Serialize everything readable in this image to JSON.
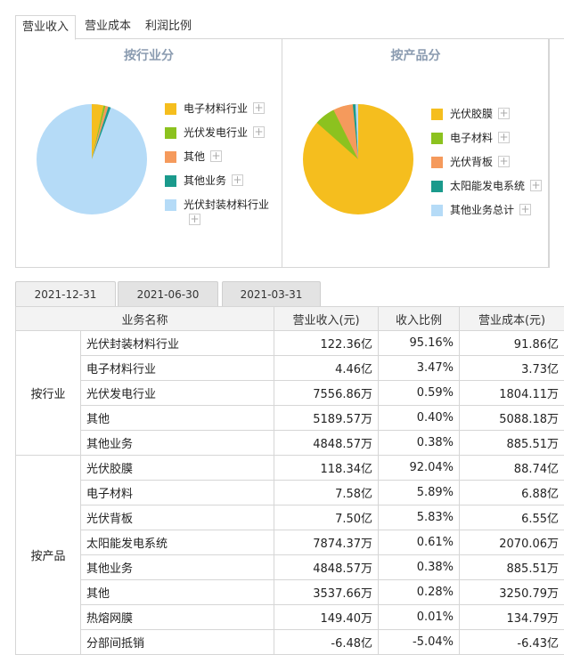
{
  "top_tabs": [
    "营业收入",
    "营业成本",
    "利润比例"
  ],
  "pie_industry": {
    "title": "按行业分",
    "legend": [
      {
        "label": "电子材料行业",
        "color": "#f5be1e"
      },
      {
        "label": "光伏发电行业",
        "color": "#8cc21f"
      },
      {
        "label": "其他",
        "color": "#f59a5c"
      },
      {
        "label": "其他业务",
        "color": "#1a9a8c"
      },
      {
        "label": "光伏封装材料行业",
        "color": "#b5dbf7"
      }
    ]
  },
  "pie_product": {
    "title": "按产品分",
    "legend": [
      {
        "label": "光伏胶膜",
        "color": "#f5be1e"
      },
      {
        "label": "电子材料",
        "color": "#8cc21f"
      },
      {
        "label": "光伏背板",
        "color": "#f59a5c"
      },
      {
        "label": "太阳能发电系统",
        "color": "#1a9a8c"
      },
      {
        "label": "其他业务总计",
        "color": "#b5dbf7"
      }
    ]
  },
  "plus_symbol": "+",
  "date_tabs": [
    "2021-12-31",
    "2021-06-30",
    "2021-03-31"
  ],
  "table": {
    "headers": [
      "业务名称",
      "营业收入(元)",
      "收入比例",
      "营业成本(元)"
    ],
    "groups": [
      {
        "name": "按行业",
        "rows": [
          [
            "光伏封装材料行业",
            "122.36亿",
            "95.16%",
            "91.86亿"
          ],
          [
            "电子材料行业",
            "4.46亿",
            "3.47%",
            "3.73亿"
          ],
          [
            "光伏发电行业",
            "7556.86万",
            "0.59%",
            "1804.11万"
          ],
          [
            "其他",
            "5189.57万",
            "0.40%",
            "5088.18万"
          ],
          [
            "其他业务",
            "4848.57万",
            "0.38%",
            "885.51万"
          ]
        ]
      },
      {
        "name": "按产品",
        "rows": [
          [
            "光伏胶膜",
            "118.34亿",
            "92.04%",
            "88.74亿"
          ],
          [
            "电子材料",
            "7.58亿",
            "5.89%",
            "6.88亿"
          ],
          [
            "光伏背板",
            "7.50亿",
            "5.83%",
            "6.55亿"
          ],
          [
            "太阳能发电系统",
            "7874.37万",
            "0.61%",
            "2070.06万"
          ],
          [
            "其他业务",
            "4848.57万",
            "0.38%",
            "885.51万"
          ],
          [
            "其他",
            "3537.66万",
            "0.28%",
            "3250.79万"
          ],
          [
            "热熔网膜",
            "149.40万",
            "0.01%",
            "134.79万"
          ],
          [
            "分部间抵销",
            "-6.48亿",
            "-5.04%",
            "-6.43亿"
          ]
        ]
      }
    ]
  }
}
